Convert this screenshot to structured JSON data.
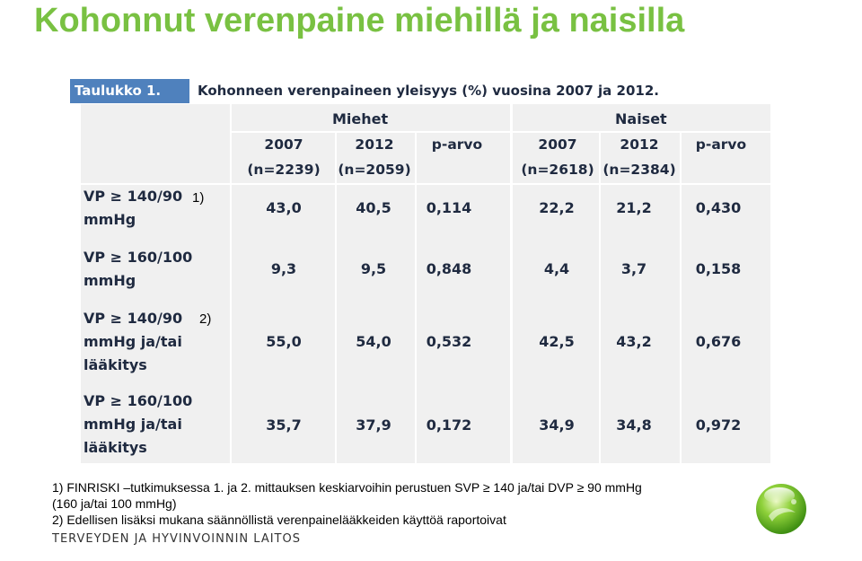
{
  "slide": {
    "title": "Kohonnut verenpaine miehillä ja naisilla"
  },
  "table": {
    "caption_label": "Taulukko 1.",
    "caption_text": "Kohonneen verenpaineen yleisyys (%) vuosina 2007 ja 2012.",
    "groups": [
      "Miehet",
      "Naiset"
    ],
    "columns": [
      {
        "line1": "2007",
        "line2": "(n=2239)"
      },
      {
        "line1": "2012",
        "line2": "(n=2059)"
      },
      {
        "line1": "p-arvo",
        "line2": ""
      },
      {
        "line1": "2007",
        "line2": "(n=2618)"
      },
      {
        "line1": "2012",
        "line2": "(n=2384)"
      },
      {
        "line1": "p-arvo",
        "line2": ""
      }
    ],
    "rows": [
      {
        "label": [
          "VP ≥ 140/90",
          "mmHg"
        ],
        "values": [
          "43,0",
          "40,5",
          "0,114",
          "22,2",
          "21,2",
          "0,430"
        ]
      },
      {
        "label": [
          "VP ≥ 160/100",
          "mmHg"
        ],
        "values": [
          "9,3",
          "9,5",
          "0,848",
          "4,4",
          "3,7",
          "0,158"
        ]
      },
      {
        "label": [
          "VP ≥ 140/90",
          "mmHg ja/tai",
          "lääkitys"
        ],
        "values": [
          "55,0",
          "54,0",
          "0,532",
          "42,5",
          "43,2",
          "0,676"
        ]
      },
      {
        "label": [
          "VP ≥ 160/100",
          "mmHg ja/tai",
          "lääkitys"
        ],
        "values": [
          "35,7",
          "37,9",
          "0,172",
          "34,9",
          "34,8",
          "0,972"
        ]
      }
    ]
  },
  "markers": {
    "note1": "1)",
    "note2": "2)"
  },
  "footnotes": {
    "line1_prefix": "1) FINRISKI",
    "line1_rest": " –tutkimuksessa 1. ja 2. mittauksen keskiarvoihin perustuen SVP ",
    "ge_symbol": "≥",
    "line1_mid": " 140 ja/tai DVP ",
    "line1_end": " 90 mmHg",
    "line2": "(160 ja/tai 100 mmHg)",
    "line3": "2) Edellisen lisäksi mukana säännöllistä verenpainelääkkeiden käyttöä raportoivat"
  },
  "footer": {
    "brand": "TERVEYDEN JA HYVINVOINNIN LAITOS",
    "logo_icon": "green-sphere-logo-icon"
  },
  "colors": {
    "title": "#79c142",
    "caption_label_bg": "#4f81bd",
    "table_bg": "#f0f0f0",
    "table_text": "#1f2a40"
  }
}
